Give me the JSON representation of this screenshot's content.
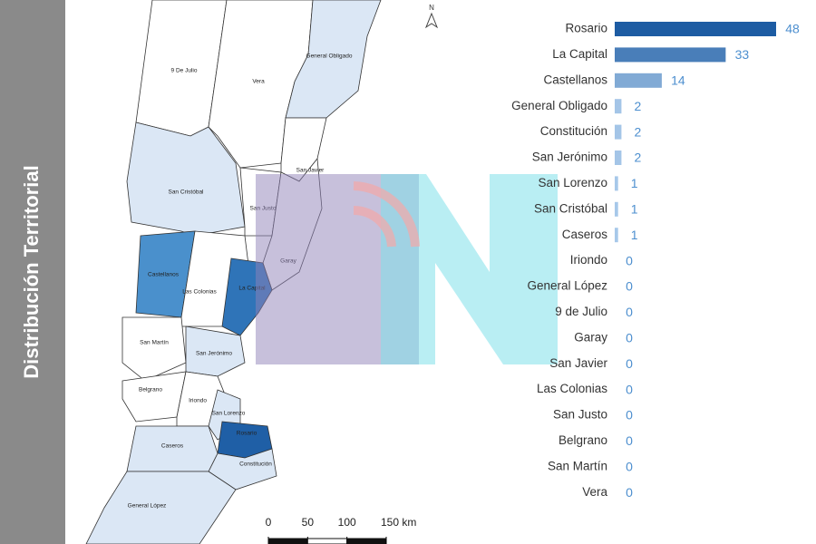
{
  "sidebar_title": "Distribución Territorial",
  "map": {
    "north": "N",
    "regions": [
      {
        "label": "9 De Julio"
      },
      {
        "label": "Vera"
      },
      {
        "label": "General Obligado"
      },
      {
        "label": "San Cristóbal"
      },
      {
        "label": "San Javier"
      },
      {
        "label": "San Justo"
      },
      {
        "label": "Garay"
      },
      {
        "label": "Castellanos"
      },
      {
        "label": "Las Colonias"
      },
      {
        "label": "La Capital"
      },
      {
        "label": "San Martín"
      },
      {
        "label": "San Jerónimo"
      },
      {
        "label": "Belgrano"
      },
      {
        "label": "Iriondo"
      },
      {
        "label": "San Lorenzo"
      },
      {
        "label": "Rosario"
      },
      {
        "label": "Constitución"
      },
      {
        "label": "Caseros"
      },
      {
        "label": "General López"
      }
    ],
    "scale_ticks": [
      0,
      50,
      100,
      {
        "value": 150,
        "label": "150 km"
      }
    ]
  },
  "chart_data": {
    "type": "bar",
    "orientation": "horizontal",
    "categories": [
      "Rosario",
      "La Capital",
      "Castellanos",
      "General Obligado",
      "Constitución",
      "San Jerónimo",
      "San Lorenzo",
      "San Cristóbal",
      "Caseros",
      "Iriondo",
      "General López",
      "9 de Julio",
      "Garay",
      "San Javier",
      "Las Colonias",
      "San Justo",
      "Belgrano",
      "San Martín",
      "Vera"
    ],
    "values": [
      48,
      33,
      14,
      2,
      2,
      2,
      1,
      1,
      1,
      0,
      0,
      0,
      0,
      0,
      0,
      0,
      0,
      0,
      0
    ]
  }
}
